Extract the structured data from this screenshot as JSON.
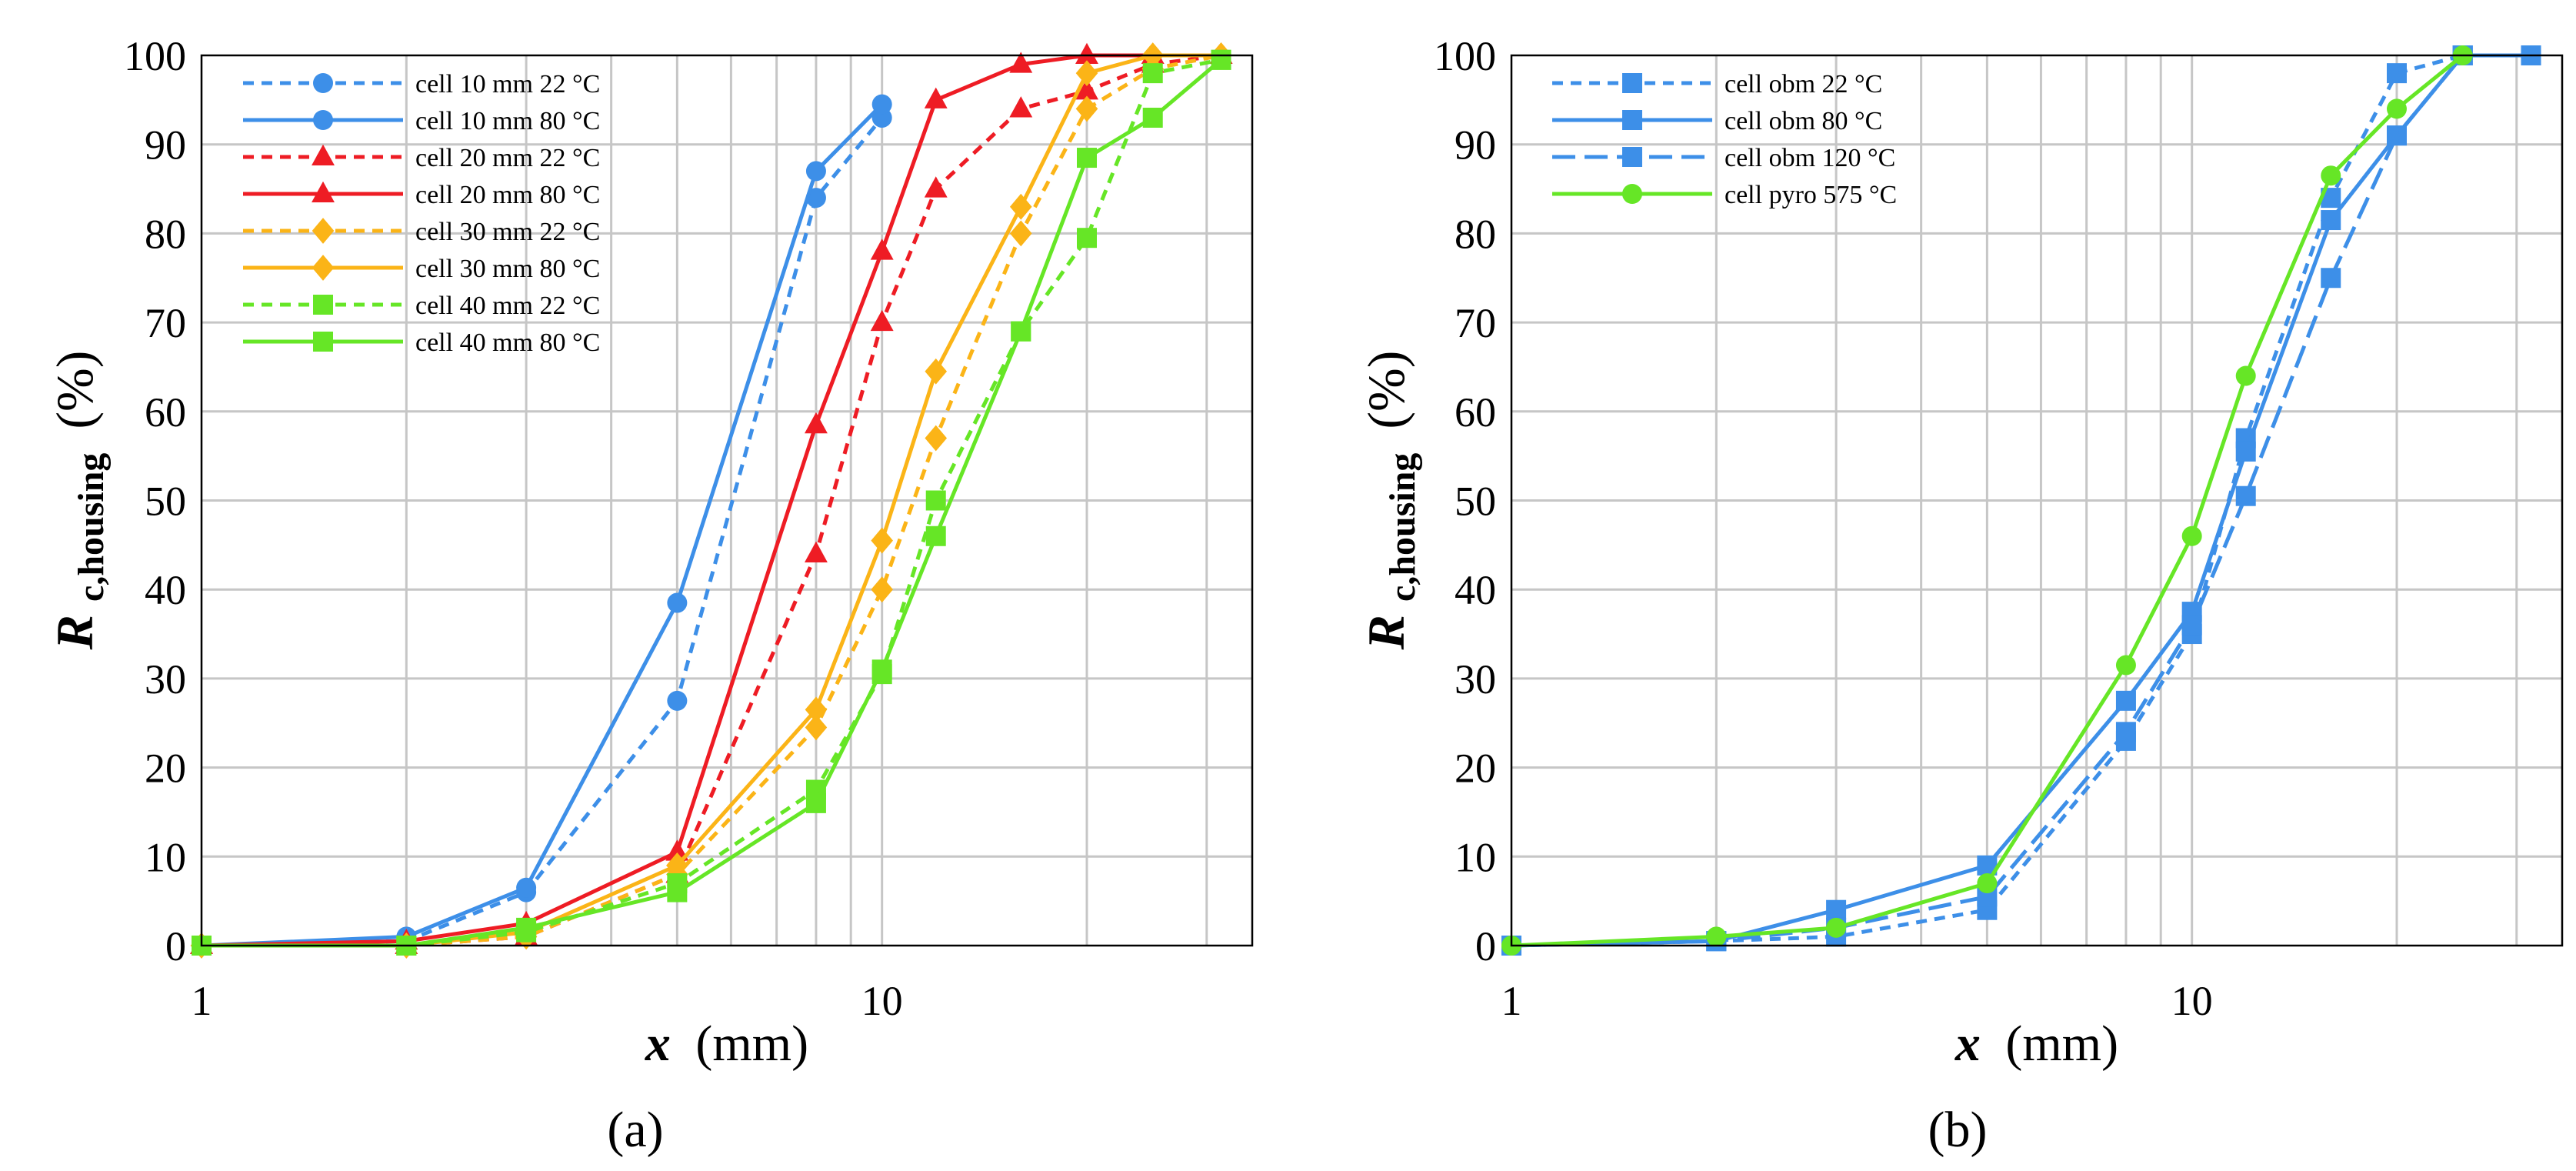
{
  "chart_data": [
    {
      "panel_label": "(a)",
      "type": "line",
      "x_scale": "log",
      "xlabel_var": "x",
      "xlabel_unit": "(mm)",
      "ylabel_var": "R",
      "ylabel_sub": "c,housing",
      "ylabel_unit": "(%)",
      "xlim": [
        1,
        35
      ],
      "ylim": [
        0,
        100
      ],
      "x_ticks": [
        1,
        10
      ],
      "y_ticks": [
        0,
        10,
        20,
        30,
        40,
        50,
        60,
        70,
        80,
        90,
        100
      ],
      "grid": true,
      "legend_position": "top-left",
      "series": [
        {
          "name": "cell 10 mm 22 °C",
          "color": "#3d8fe8",
          "dash": true,
          "marker": "circle",
          "x": [
            1,
            2,
            3,
            5,
            8,
            10
          ],
          "y": [
            0,
            0.5,
            6,
            27.5,
            84,
            93
          ]
        },
        {
          "name": "cell 10 mm 80 °C",
          "color": "#3d8fe8",
          "dash": false,
          "marker": "circle",
          "x": [
            1,
            2,
            3,
            5,
            8,
            10
          ],
          "y": [
            0,
            1,
            6.5,
            38.5,
            87,
            94.5
          ]
        },
        {
          "name": "cell 20 mm 22 °C",
          "color": "#ee1c24",
          "dash": true,
          "marker": "triangle",
          "x": [
            1,
            2,
            3,
            5,
            8,
            10,
            12,
            16,
            20,
            25,
            31.5
          ],
          "y": [
            0,
            0,
            1,
            8,
            44,
            70,
            85,
            94,
            96,
            99,
            100
          ]
        },
        {
          "name": "cell 20 mm 80 °C",
          "color": "#ee1c24",
          "dash": false,
          "marker": "triangle",
          "x": [
            1,
            2,
            3,
            5,
            8,
            10,
            12,
            16,
            20,
            25,
            31.5
          ],
          "y": [
            0,
            0.5,
            2.5,
            10.5,
            58.5,
            78,
            95,
            99,
            100,
            100,
            100
          ]
        },
        {
          "name": "cell 30 mm 22 °C",
          "color": "#fbb417",
          "dash": true,
          "marker": "diamond",
          "x": [
            1,
            2,
            3,
            5,
            8,
            10,
            12,
            16,
            20,
            25,
            31.5
          ],
          "y": [
            0,
            0,
            1,
            8,
            24.5,
            40,
            57,
            80,
            94,
            98.5,
            100
          ]
        },
        {
          "name": "cell 30 mm 80 °C",
          "color": "#fbb417",
          "dash": false,
          "marker": "diamond",
          "x": [
            1,
            2,
            3,
            5,
            8,
            10,
            12,
            16,
            20,
            25,
            31.5
          ],
          "y": [
            0,
            0,
            1.5,
            9,
            26.5,
            45.5,
            64.5,
            83,
            98,
            100,
            100
          ]
        },
        {
          "name": "cell 40 mm 22 °C",
          "color": "#66e626",
          "dash": true,
          "marker": "square",
          "x": [
            1,
            2,
            3,
            5,
            8,
            10,
            12,
            16,
            20,
            25,
            31.5
          ],
          "y": [
            0,
            0,
            1.5,
            7,
            17.5,
            30.5,
            50,
            69,
            79.5,
            98,
            99.5
          ]
        },
        {
          "name": "cell 40 mm 80 °C",
          "color": "#66e626",
          "dash": false,
          "marker": "square",
          "x": [
            1,
            2,
            3,
            5,
            8,
            10,
            12,
            16,
            20,
            25,
            31.5
          ],
          "y": [
            0,
            0,
            2,
            6,
            16,
            31,
            46,
            69,
            88.5,
            93,
            99.5
          ]
        }
      ]
    },
    {
      "panel_label": "(b)",
      "type": "line",
      "x_scale": "log",
      "xlabel_var": "x",
      "xlabel_unit": "(mm)",
      "ylabel_var": "R",
      "ylabel_sub": "c,housing",
      "ylabel_unit": "(%)",
      "xlim": [
        1,
        35
      ],
      "ylim": [
        0,
        100
      ],
      "x_ticks": [
        1,
        10
      ],
      "y_ticks": [
        0,
        10,
        20,
        30,
        40,
        50,
        60,
        70,
        80,
        90,
        100
      ],
      "grid": true,
      "legend_position": "top-left",
      "series": [
        {
          "name": "cell obm 22 °C",
          "color": "#3d8fe8",
          "dash": true,
          "marker": "square",
          "x": [
            1,
            2,
            3,
            5,
            8,
            10,
            12,
            16,
            20,
            25,
            31.5
          ],
          "y": [
            0,
            0.5,
            1,
            4,
            23,
            35,
            57,
            84,
            98,
            100,
            100
          ]
        },
        {
          "name": "cell obm 80 °C",
          "color": "#3d8fe8",
          "dash": false,
          "marker": "square",
          "x": [
            1,
            2,
            3,
            5,
            8,
            10,
            12,
            16,
            20,
            25,
            31.5
          ],
          "y": [
            0,
            0.5,
            4,
            9,
            27.5,
            37.5,
            55.5,
            81.5,
            91,
            100,
            100
          ]
        },
        {
          "name": "cell obm 120 °C",
          "color": "#3d8fe8",
          "dash": "long",
          "marker": "square",
          "x": [
            1,
            2,
            3,
            5,
            8,
            10,
            12,
            16,
            20,
            25,
            31.5
          ],
          "y": [
            0,
            0.5,
            2,
            5.5,
            24,
            36,
            50.5,
            75,
            91,
            100,
            100
          ]
        },
        {
          "name": "cell pyro 575 °C",
          "color": "#66e626",
          "dash": false,
          "marker": "circle",
          "x": [
            1,
            2,
            3,
            5,
            8,
            10,
            12,
            16,
            20,
            25
          ],
          "y": [
            0,
            1,
            2,
            7,
            31.5,
            46,
            64,
            86.5,
            94,
            100
          ]
        }
      ]
    }
  ]
}
